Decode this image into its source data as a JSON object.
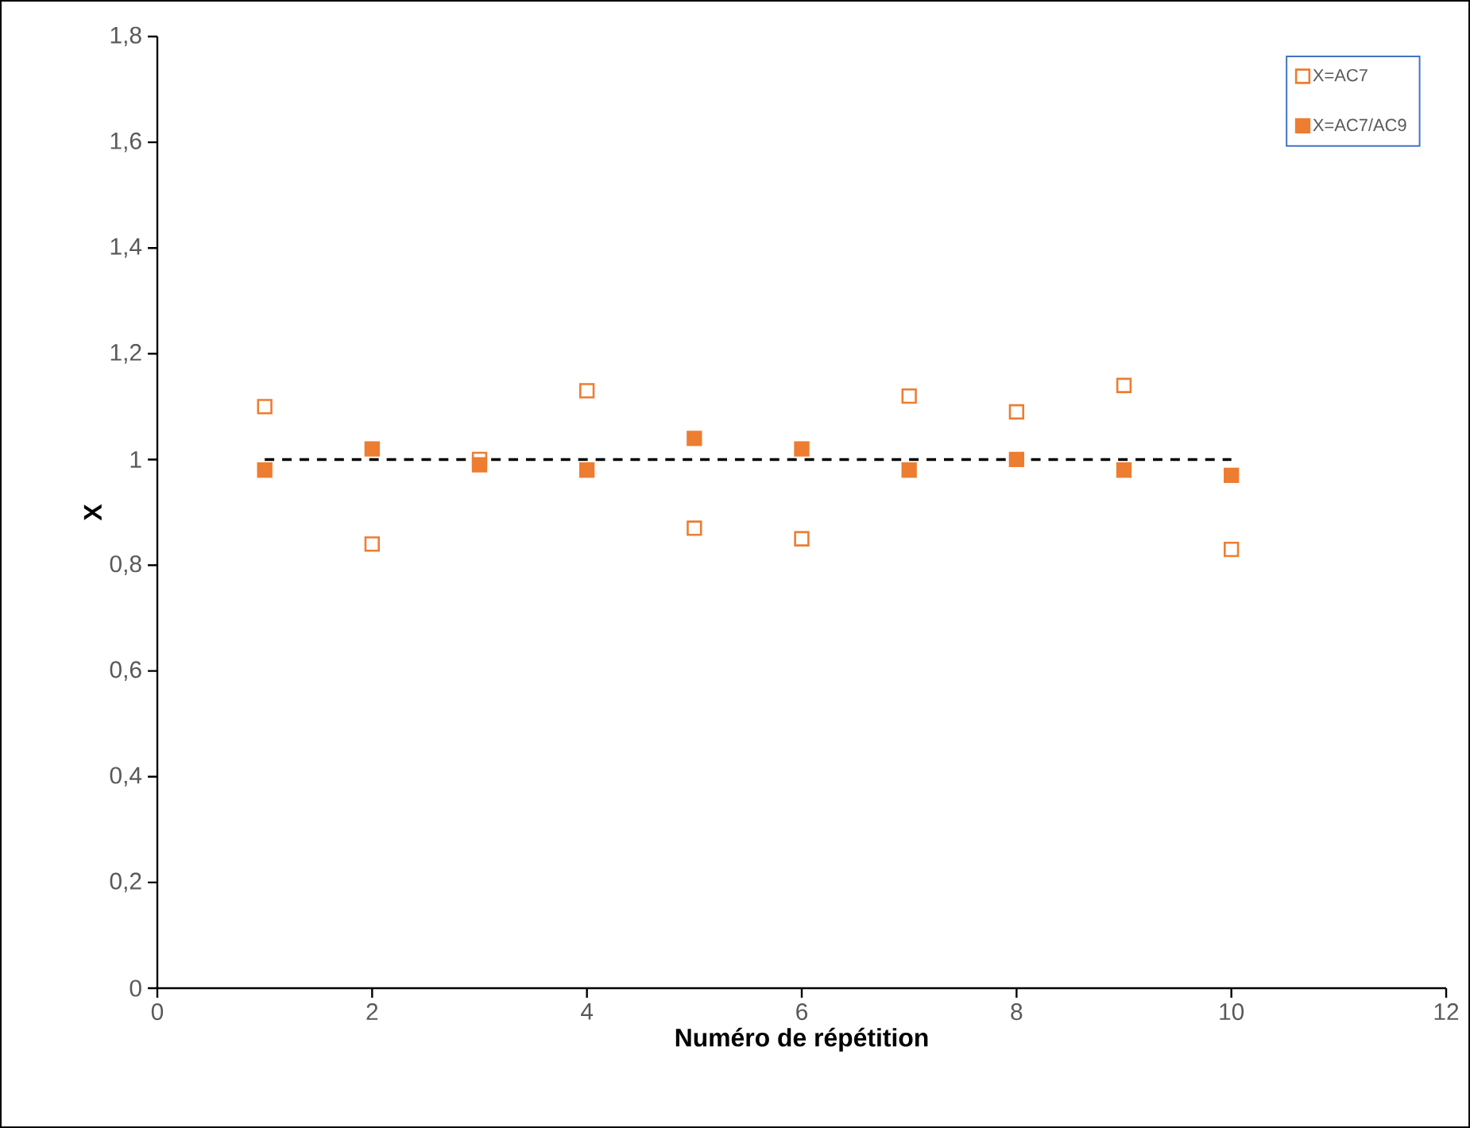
{
  "chart_data": {
    "type": "scatter",
    "xlabel": "Numéro de répétition",
    "ylabel": "X",
    "xlim": [
      0,
      12
    ],
    "ylim": [
      0,
      1.8
    ],
    "xticks": [
      0,
      2,
      4,
      6,
      8,
      10,
      12
    ],
    "yticks": [
      {
        "value": 0,
        "label": "0"
      },
      {
        "value": 0.2,
        "label": "0,2"
      },
      {
        "value": 0.4,
        "label": "0,4"
      },
      {
        "value": 0.6,
        "label": "0,6"
      },
      {
        "value": 0.8,
        "label": "0,8"
      },
      {
        "value": 1,
        "label": "1"
      },
      {
        "value": 1.2,
        "label": "1,2"
      },
      {
        "value": 1.4,
        "label": "1,4"
      },
      {
        "value": 1.6,
        "label": "1,6"
      },
      {
        "value": 1.8,
        "label": "1,8"
      }
    ],
    "x": [
      1,
      2,
      3,
      4,
      5,
      6,
      7,
      8,
      9,
      10
    ],
    "marker": "square",
    "grid": false,
    "legend": "top right",
    "series": [
      {
        "name": "X=AC7",
        "color": "#ed7d31",
        "marker": "square-open",
        "values": [
          1.1,
          0.84,
          1.0,
          1.13,
          0.87,
          0.85,
          1.12,
          1.09,
          1.14,
          0.83
        ]
      },
      {
        "name": "X=AC7/AC9",
        "color": "#ed7d31",
        "values": [
          0.98,
          1.02,
          0.99,
          0.98,
          1.04,
          1.02,
          0.98,
          1.0,
          0.98,
          0.97
        ]
      },
      {
        "type": "line",
        "color": "#000000",
        "line_style": "dashed",
        "marker": "none",
        "x": [
          1,
          10
        ],
        "values": [
          1,
          1
        ]
      }
    ]
  }
}
